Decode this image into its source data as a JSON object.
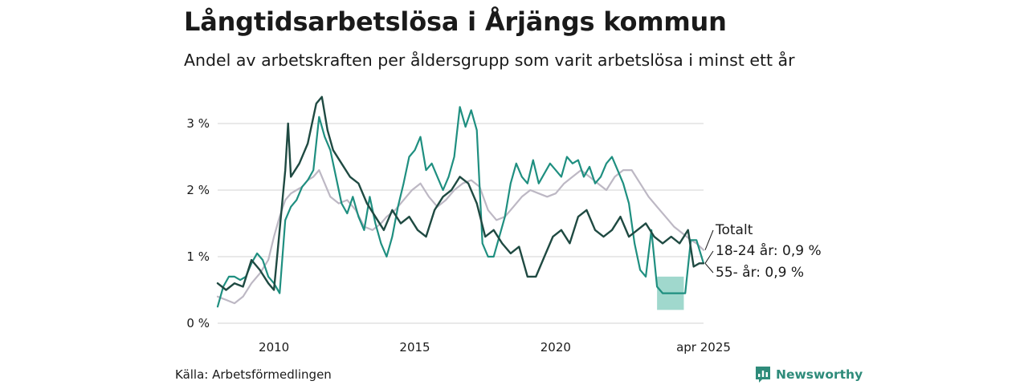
{
  "title": "Långtidsarbetslösa i Årjängs kommun",
  "subtitle": "Andel av arbetskraften per åldersgrupp som varit arbetslösa i minst ett år",
  "source": "Källa: Arbetsförmedlingen",
  "brand": "Newsworthy",
  "colors": {
    "totalt": "#bdb8c4",
    "age_18_24": "#1f8f80",
    "age_55": "#1f4a42",
    "band": "#8fd1c4",
    "grid": "#dcdcdc",
    "brand": "#2e8b7a"
  },
  "chart_data": {
    "type": "line",
    "title": "Långtidsarbetslösa i Årjängs kommun",
    "subtitle": "Andel av arbetskraften per åldersgrupp som varit arbetslösa i minst ett år",
    "xlabel": "",
    "ylabel": "",
    "x_ticks": [
      {
        "x": 2010,
        "label": "2010"
      },
      {
        "x": 2015,
        "label": "2015"
      },
      {
        "x": 2020,
        "label": "2020"
      },
      {
        "x": 2025.25,
        "label": "apr 2025"
      }
    ],
    "y_ticks": [
      {
        "y": 0,
        "label": "0 %"
      },
      {
        "y": 1,
        "label": "1 %"
      },
      {
        "y": 2,
        "label": "2 %"
      },
      {
        "y": 3,
        "label": "3 %"
      }
    ],
    "xlim": [
      2008.0,
      2025.25
    ],
    "ylim": [
      0,
      3.5
    ],
    "grid": true,
    "legend": "none",
    "series": [
      {
        "key": "totalt",
        "label": "Totalt",
        "values": [
          [
            2008.0,
            0.4
          ],
          [
            2008.3,
            0.35
          ],
          [
            2008.6,
            0.3
          ],
          [
            2008.9,
            0.4
          ],
          [
            2009.2,
            0.6
          ],
          [
            2009.5,
            0.75
          ],
          [
            2009.8,
            0.95
          ],
          [
            2010.0,
            1.3
          ],
          [
            2010.2,
            1.6
          ],
          [
            2010.4,
            1.85
          ],
          [
            2010.6,
            1.95
          ],
          [
            2010.8,
            2.0
          ],
          [
            2011.0,
            2.05
          ],
          [
            2011.2,
            2.15
          ],
          [
            2011.4,
            2.2
          ],
          [
            2011.6,
            2.3
          ],
          [
            2011.8,
            2.1
          ],
          [
            2012.0,
            1.9
          ],
          [
            2012.3,
            1.8
          ],
          [
            2012.6,
            1.85
          ],
          [
            2012.9,
            1.7
          ],
          [
            2013.2,
            1.45
          ],
          [
            2013.5,
            1.4
          ],
          [
            2013.8,
            1.5
          ],
          [
            2014.0,
            1.6
          ],
          [
            2014.3,
            1.7
          ],
          [
            2014.6,
            1.85
          ],
          [
            2014.9,
            2.0
          ],
          [
            2015.2,
            2.1
          ],
          [
            2015.5,
            1.9
          ],
          [
            2015.8,
            1.75
          ],
          [
            2016.1,
            1.85
          ],
          [
            2016.4,
            2.0
          ],
          [
            2016.7,
            2.1
          ],
          [
            2017.0,
            2.15
          ],
          [
            2017.3,
            2.05
          ],
          [
            2017.6,
            1.7
          ],
          [
            2017.9,
            1.55
          ],
          [
            2018.2,
            1.6
          ],
          [
            2018.5,
            1.75
          ],
          [
            2018.8,
            1.9
          ],
          [
            2019.1,
            2.0
          ],
          [
            2019.4,
            1.95
          ],
          [
            2019.7,
            1.9
          ],
          [
            2020.0,
            1.95
          ],
          [
            2020.3,
            2.1
          ],
          [
            2020.6,
            2.2
          ],
          [
            2020.9,
            2.3
          ],
          [
            2021.2,
            2.2
          ],
          [
            2021.5,
            2.1
          ],
          [
            2021.8,
            2.0
          ],
          [
            2022.1,
            2.2
          ],
          [
            2022.4,
            2.3
          ],
          [
            2022.7,
            2.3
          ],
          [
            2023.0,
            2.1
          ],
          [
            2023.3,
            1.9
          ],
          [
            2023.6,
            1.75
          ],
          [
            2023.9,
            1.6
          ],
          [
            2024.2,
            1.45
          ],
          [
            2024.5,
            1.35
          ],
          [
            2024.8,
            1.25
          ],
          [
            2025.0,
            1.2
          ],
          [
            2025.25,
            1.1
          ]
        ]
      },
      {
        "key": "age_18_24",
        "label": "18-24 år: 0,9 %",
        "values": [
          [
            2008.0,
            0.25
          ],
          [
            2008.2,
            0.55
          ],
          [
            2008.4,
            0.7
          ],
          [
            2008.6,
            0.7
          ],
          [
            2008.8,
            0.65
          ],
          [
            2009.0,
            0.7
          ],
          [
            2009.2,
            0.9
          ],
          [
            2009.4,
            1.05
          ],
          [
            2009.6,
            0.95
          ],
          [
            2009.8,
            0.7
          ],
          [
            2010.0,
            0.6
          ],
          [
            2010.2,
            0.45
          ],
          [
            2010.4,
            1.55
          ],
          [
            2010.6,
            1.75
          ],
          [
            2010.8,
            1.85
          ],
          [
            2011.0,
            2.05
          ],
          [
            2011.2,
            2.15
          ],
          [
            2011.4,
            2.3
          ],
          [
            2011.6,
            3.1
          ],
          [
            2011.8,
            2.8
          ],
          [
            2012.0,
            2.6
          ],
          [
            2012.2,
            2.2
          ],
          [
            2012.4,
            1.8
          ],
          [
            2012.6,
            1.65
          ],
          [
            2012.8,
            1.9
          ],
          [
            2013.0,
            1.6
          ],
          [
            2013.2,
            1.4
          ],
          [
            2013.4,
            1.9
          ],
          [
            2013.6,
            1.5
          ],
          [
            2013.8,
            1.2
          ],
          [
            2014.0,
            1.0
          ],
          [
            2014.2,
            1.3
          ],
          [
            2014.4,
            1.75
          ],
          [
            2014.6,
            2.1
          ],
          [
            2014.8,
            2.5
          ],
          [
            2015.0,
            2.6
          ],
          [
            2015.2,
            2.8
          ],
          [
            2015.4,
            2.3
          ],
          [
            2015.6,
            2.4
          ],
          [
            2015.8,
            2.2
          ],
          [
            2016.0,
            2.0
          ],
          [
            2016.2,
            2.2
          ],
          [
            2016.4,
            2.5
          ],
          [
            2016.6,
            3.25
          ],
          [
            2016.8,
            2.95
          ],
          [
            2017.0,
            3.2
          ],
          [
            2017.2,
            2.9
          ],
          [
            2017.4,
            1.2
          ],
          [
            2017.6,
            1.0
          ],
          [
            2017.8,
            1.0
          ],
          [
            2018.0,
            1.3
          ],
          [
            2018.2,
            1.6
          ],
          [
            2018.4,
            2.1
          ],
          [
            2018.6,
            2.4
          ],
          [
            2018.8,
            2.2
          ],
          [
            2019.0,
            2.1
          ],
          [
            2019.2,
            2.45
          ],
          [
            2019.4,
            2.1
          ],
          [
            2019.6,
            2.25
          ],
          [
            2019.8,
            2.4
          ],
          [
            2020.0,
            2.3
          ],
          [
            2020.2,
            2.2
          ],
          [
            2020.4,
            2.5
          ],
          [
            2020.6,
            2.4
          ],
          [
            2020.8,
            2.45
          ],
          [
            2021.0,
            2.2
          ],
          [
            2021.2,
            2.35
          ],
          [
            2021.4,
            2.1
          ],
          [
            2021.6,
            2.2
          ],
          [
            2021.8,
            2.4
          ],
          [
            2022.0,
            2.5
          ],
          [
            2022.2,
            2.3
          ],
          [
            2022.4,
            2.1
          ],
          [
            2022.6,
            1.8
          ],
          [
            2022.8,
            1.2
          ],
          [
            2023.0,
            0.8
          ],
          [
            2023.2,
            0.7
          ],
          [
            2023.4,
            1.4
          ],
          [
            2023.6,
            0.55
          ],
          [
            2023.8,
            0.45
          ],
          [
            2024.0,
            0.45
          ],
          [
            2024.2,
            0.45
          ],
          [
            2024.4,
            0.45
          ],
          [
            2024.6,
            0.45
          ],
          [
            2024.8,
            1.25
          ],
          [
            2025.0,
            1.25
          ],
          [
            2025.25,
            0.9
          ]
        ]
      },
      {
        "key": "age_55",
        "label": "55- år: 0,9 %",
        "values": [
          [
            2008.0,
            0.6
          ],
          [
            2008.3,
            0.5
          ],
          [
            2008.6,
            0.6
          ],
          [
            2008.9,
            0.55
          ],
          [
            2009.2,
            0.95
          ],
          [
            2009.5,
            0.8
          ],
          [
            2009.8,
            0.6
          ],
          [
            2010.0,
            0.5
          ],
          [
            2010.2,
            1.4
          ],
          [
            2010.4,
            2.3
          ],
          [
            2010.5,
            3.0
          ],
          [
            2010.6,
            2.2
          ],
          [
            2010.9,
            2.4
          ],
          [
            2011.2,
            2.7
          ],
          [
            2011.5,
            3.3
          ],
          [
            2011.7,
            3.4
          ],
          [
            2011.9,
            2.9
          ],
          [
            2012.1,
            2.6
          ],
          [
            2012.4,
            2.4
          ],
          [
            2012.7,
            2.2
          ],
          [
            2013.0,
            2.1
          ],
          [
            2013.3,
            1.8
          ],
          [
            2013.6,
            1.6
          ],
          [
            2013.9,
            1.4
          ],
          [
            2014.2,
            1.7
          ],
          [
            2014.5,
            1.5
          ],
          [
            2014.8,
            1.6
          ],
          [
            2015.1,
            1.4
          ],
          [
            2015.4,
            1.3
          ],
          [
            2015.7,
            1.7
          ],
          [
            2016.0,
            1.9
          ],
          [
            2016.3,
            2.0
          ],
          [
            2016.6,
            2.2
          ],
          [
            2016.9,
            2.1
          ],
          [
            2017.2,
            1.8
          ],
          [
            2017.5,
            1.3
          ],
          [
            2017.8,
            1.4
          ],
          [
            2018.1,
            1.2
          ],
          [
            2018.4,
            1.05
          ],
          [
            2018.7,
            1.15
          ],
          [
            2019.0,
            0.7
          ],
          [
            2019.3,
            0.7
          ],
          [
            2019.6,
            1.0
          ],
          [
            2019.9,
            1.3
          ],
          [
            2020.2,
            1.4
          ],
          [
            2020.5,
            1.2
          ],
          [
            2020.8,
            1.6
          ],
          [
            2021.1,
            1.7
          ],
          [
            2021.4,
            1.4
          ],
          [
            2021.7,
            1.3
          ],
          [
            2022.0,
            1.4
          ],
          [
            2022.3,
            1.6
          ],
          [
            2022.6,
            1.3
          ],
          [
            2022.9,
            1.4
          ],
          [
            2023.2,
            1.5
          ],
          [
            2023.5,
            1.3
          ],
          [
            2023.8,
            1.2
          ],
          [
            2024.1,
            1.3
          ],
          [
            2024.4,
            1.2
          ],
          [
            2024.7,
            1.4
          ],
          [
            2024.9,
            0.85
          ],
          [
            2025.1,
            0.9
          ],
          [
            2025.25,
            0.9
          ]
        ]
      }
    ],
    "bands": [
      {
        "series": "age_18_24",
        "x": [
          2023.6,
          2024.55
        ],
        "lower": 0.2,
        "upper": 0.7
      }
    ]
  }
}
